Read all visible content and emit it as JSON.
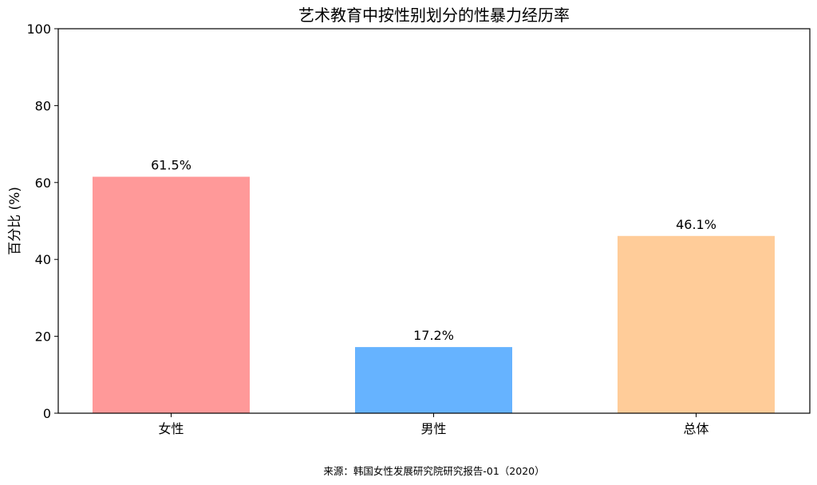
{
  "chart_data": {
    "type": "bar",
    "title": "艺术教育中按性别划分的性暴力经历率",
    "xlabel": "",
    "ylabel": "百分比 (%)",
    "categories": [
      "女性",
      "男性",
      "总体"
    ],
    "values": [
      61.5,
      17.2,
      46.1
    ],
    "value_labels": [
      "61.5%",
      "17.2%",
      "46.1%"
    ],
    "colors": [
      "#ff9999",
      "#66b3ff",
      "#ffcc99"
    ],
    "ylim": [
      0,
      100
    ],
    "yticks": [
      0,
      20,
      40,
      60,
      80,
      100
    ],
    "grid": false,
    "legend": "none",
    "source": "来源：韩国女性发展研究院研究报告-01（2020）"
  }
}
